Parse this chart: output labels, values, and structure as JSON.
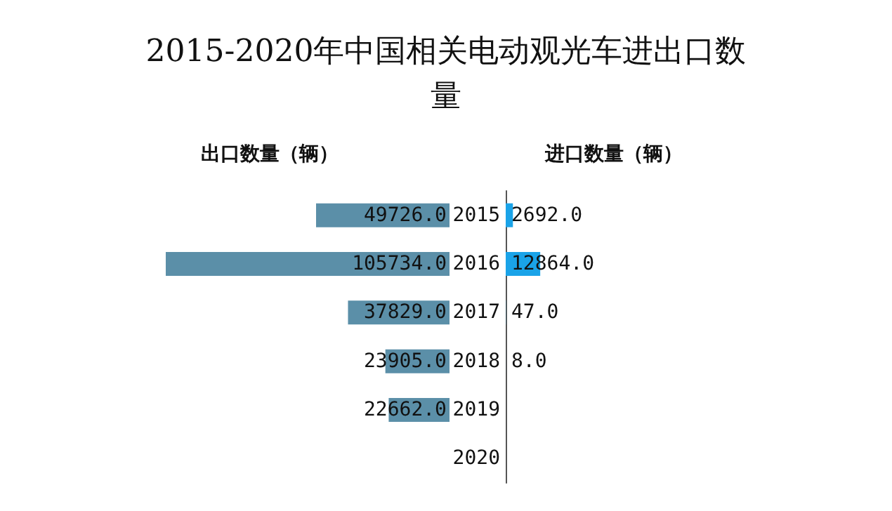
{
  "chart_data": [
    {
      "type": "bar",
      "orientation": "horizontal",
      "title": "2015-2020年中国相关电动观光车进出口数量",
      "categories": [
        "2015",
        "2016",
        "2017",
        "2018",
        "2019",
        "2020"
      ],
      "tick_labels": false,
      "legend": false,
      "series": [
        {
          "name": "出口数量（辆）",
          "color": "#5b8fa8",
          "values": [
            49726,
            105734,
            37829,
            23905,
            22662,
            null
          ],
          "value_labels": [
            "49726.0",
            "105734.0",
            "37829.0",
            "23905.0",
            "22662.0",
            null
          ]
        }
      ]
    },
    {
      "type": "bar",
      "orientation": "horizontal",
      "categories": [
        "2015",
        "2016",
        "2017",
        "2018",
        "2019",
        "2020"
      ],
      "tick_labels": "y",
      "legend": false,
      "series": [
        {
          "name": "进口数量（辆）",
          "color": "#1aa3e8",
          "values": [
            2692,
            12864,
            47,
            8,
            null,
            null
          ],
          "value_labels": [
            "2692.0",
            "12864.0",
            "47.0",
            "8.0",
            null,
            null
          ]
        }
      ]
    }
  ]
}
